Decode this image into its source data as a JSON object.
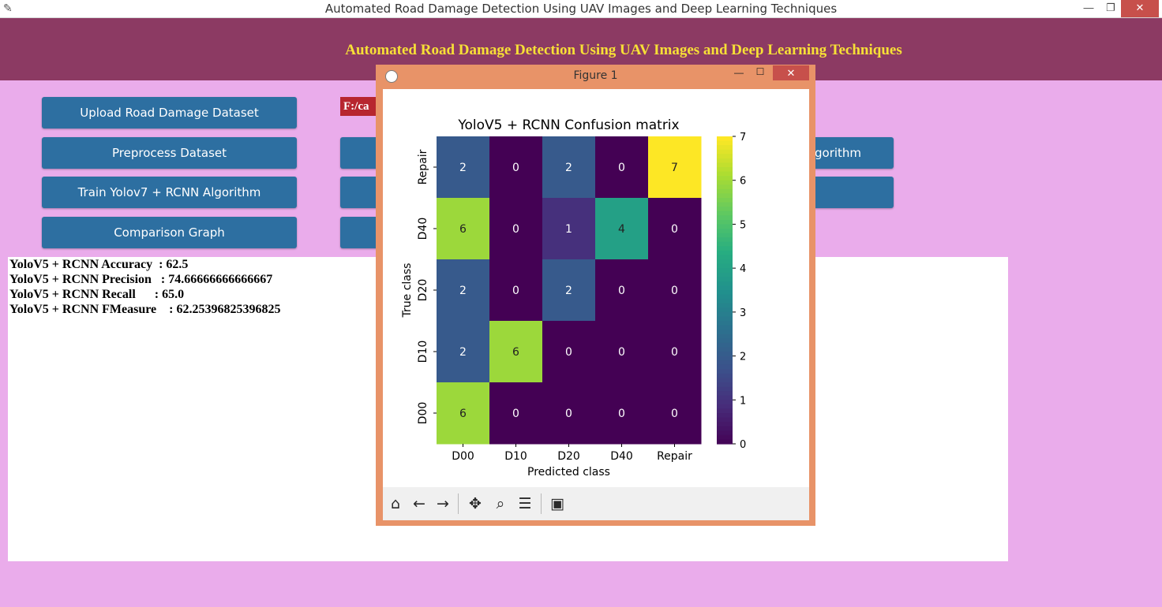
{
  "window": {
    "title": "Automated Road Damage Detection Using UAV Images and Deep Learning Techniques",
    "minimize": "—",
    "restore": "❐",
    "close": "✕"
  },
  "header": {
    "heading": "Automated Road Damage Detection Using UAV Images and Deep Learning Techniques"
  },
  "buttons": {
    "upload": "Upload Road Damage Dataset",
    "preprocess": "Preprocess Dataset",
    "train": "Train Yolov7 + RCNN Algorithm",
    "comparison": "Comparison Graph",
    "partial_right": "gorithm"
  },
  "path_label": "F:/ca",
  "output_lines": [
    "YoloV5 + RCNN Accuracy  : 62.5",
    "YoloV5 + RCNN Precision   : 74.66666666666667",
    "YoloV5 + RCNN Recall      : 65.0",
    "YoloV5 + RCNN FMeasure    : 62.25396825396825"
  ],
  "figure_window": {
    "title": "Figure 1",
    "minimize": "—",
    "maximize": "☐",
    "close": "✕",
    "toolbar": {
      "home": "home-icon",
      "back": "back-arrow-icon",
      "forward": "forward-arrow-icon",
      "pan": "pan-icon",
      "zoom": "zoom-icon",
      "configure": "configure-subplots-icon",
      "save": "save-icon"
    }
  },
  "chart_data": {
    "type": "heatmap",
    "title": "YoloV5 + RCNN Confusion matrix",
    "xlabel": "Predicted class",
    "ylabel": "True class",
    "x_categories": [
      "D00",
      "D10",
      "D20",
      "D40",
      "Repair"
    ],
    "y_categories_top_to_bottom": [
      "Repair",
      "D40",
      "D20",
      "D10",
      "D00"
    ],
    "matrix": [
      [
        2,
        0,
        2,
        0,
        7
      ],
      [
        6,
        0,
        1,
        4,
        0
      ],
      [
        2,
        0,
        2,
        0,
        0
      ],
      [
        2,
        6,
        0,
        0,
        0
      ],
      [
        6,
        0,
        0,
        0,
        0
      ]
    ],
    "colorbar": {
      "min": 0,
      "max": 7,
      "ticks": [
        0,
        1,
        2,
        3,
        4,
        5,
        6,
        7
      ],
      "colormap": "viridis"
    }
  }
}
